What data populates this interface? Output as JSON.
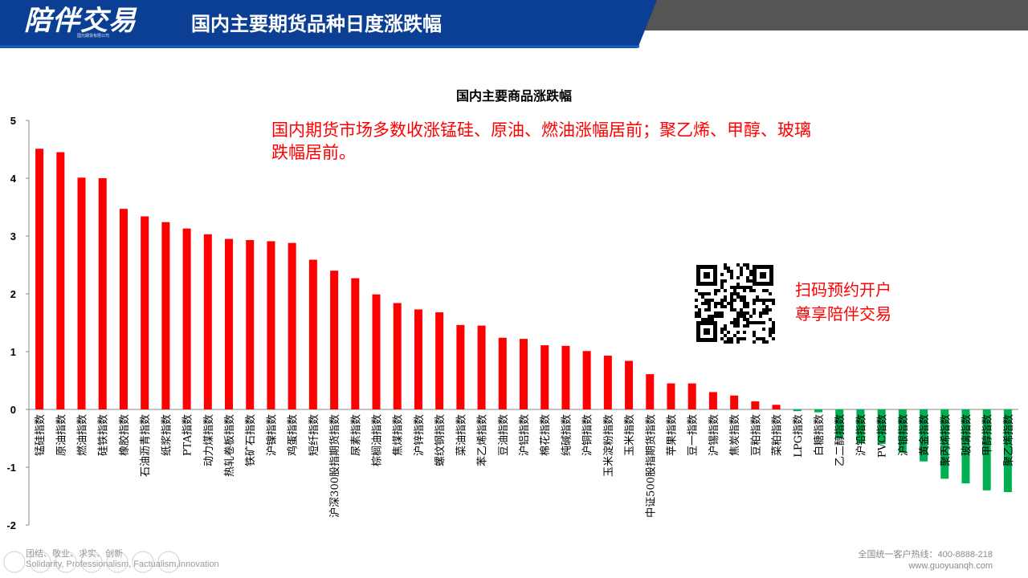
{
  "header": {
    "brand": "陪伴交易",
    "brand_sub": "国元期货有限公司",
    "title": "国内主要期货品种日度涨跌幅"
  },
  "annotation": "国内期货市场多数收涨锰硅、原油、燃油涨幅居前；聚乙烯、甲醇、玻璃跌幅居前。",
  "qr": {
    "line1": "扫码预约开户",
    "line2": "尊享陪伴交易"
  },
  "footer": {
    "motto_cn": "团结、敬业、求实、创新",
    "motto_en": "Solidarity, Professionalism, Factualism,innovation",
    "hotline": "全国统一客户热线：400-8888-218",
    "website": "www.guoyuanqh.com"
  },
  "colors": {
    "header_blue": "#0b3f93",
    "header_gray": "#555555",
    "positive": "#ff0000",
    "negative": "#00b050"
  },
  "chart_data": {
    "type": "bar",
    "title": "国内主要商品涨跌幅",
    "xlabel": "",
    "ylabel": "",
    "ylim": [
      -2,
      5
    ],
    "yticks": [
      5,
      4,
      3,
      2,
      1,
      0,
      -1,
      -2
    ],
    "grid": false,
    "categories": [
      "锰硅指数",
      "原油指数",
      "燃油指数",
      "硅铁指数",
      "橡胶指数",
      "石油沥青指数",
      "纸浆指数",
      "PTA指数",
      "动力煤指数",
      "热轧卷板指数",
      "铁矿石指数",
      "沪镍指数",
      "鸡蛋指数",
      "短纤指数",
      "沪深300股指期货指数",
      "尿素指数",
      "棕榈油指数",
      "焦煤指数",
      "沪锌指数",
      "螺纹钢指数",
      "菜油指数",
      "苯乙烯指数",
      "豆油指数",
      "沪铝指数",
      "棉花指数",
      "纯碱指数",
      "沪铜指数",
      "玉米淀粉指数",
      "玉米指数",
      "中证500股指期货指数",
      "苹果指数",
      "豆一指数",
      "沪锡指数",
      "焦炭指数",
      "豆粕指数",
      "菜粕指数",
      "LPG指数",
      "白糖指数",
      "乙二醇指数",
      "沪铅指数",
      "PVC指数",
      "沪银指数",
      "黄金指数",
      "聚丙烯指数",
      "玻璃指数",
      "甲醇指数",
      "聚乙烯指数"
    ],
    "values": [
      4.51,
      4.45,
      4.01,
      4.0,
      3.47,
      3.34,
      3.24,
      3.13,
      3.03,
      2.95,
      2.93,
      2.91,
      2.88,
      2.59,
      2.4,
      2.27,
      1.99,
      1.84,
      1.73,
      1.68,
      1.46,
      1.45,
      1.24,
      1.22,
      1.11,
      1.1,
      1.01,
      0.93,
      0.84,
      0.61,
      0.45,
      0.45,
      0.3,
      0.24,
      0.14,
      0.08,
      -0.03,
      -0.05,
      -0.5,
      -0.58,
      -0.6,
      -0.75,
      -0.9,
      -1.2,
      -1.28,
      -1.4,
      -1.43
    ]
  }
}
